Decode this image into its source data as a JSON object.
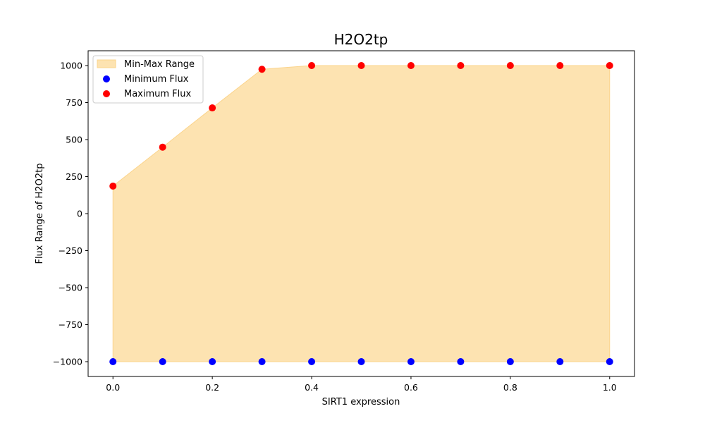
{
  "chart_data": {
    "type": "scatter",
    "title": "H2O2tp",
    "xlabel": "SIRT1 expression",
    "ylabel": "Flux Range of H2O2tp",
    "xlim": [
      -0.05,
      1.05
    ],
    "ylim": [
      -1100,
      1100
    ],
    "xticks": [
      0.0,
      0.2,
      0.4,
      0.6,
      0.8,
      1.0
    ],
    "xtick_labels": [
      "0.0",
      "0.2",
      "0.4",
      "0.6",
      "0.8",
      "1.0"
    ],
    "yticks": [
      -1000,
      -750,
      -500,
      -250,
      0,
      250,
      500,
      750,
      1000
    ],
    "ytick_labels": [
      "−1000",
      "−750",
      "−500",
      "−250",
      "0",
      "250",
      "500",
      "750",
      "1000"
    ],
    "x": [
      0.0,
      0.1,
      0.2,
      0.3,
      0.4,
      0.5,
      0.6,
      0.7,
      0.8,
      0.9,
      1.0
    ],
    "series": [
      {
        "name": "Minimum Flux",
        "kind": "scatter",
        "color": "#0000ff",
        "values": [
          -1000,
          -1000,
          -1000,
          -1000,
          -1000,
          -1000,
          -1000,
          -1000,
          -1000,
          -1000,
          -1000
        ]
      },
      {
        "name": "Maximum Flux",
        "kind": "scatter",
        "color": "#ff0000",
        "values": [
          186,
          449,
          714,
          975,
          1000,
          1000,
          1000,
          1000,
          1000,
          1000,
          1000
        ]
      }
    ],
    "fill": {
      "name": "Min-Max Range",
      "color": "#fde3b1",
      "edge_color": "#fbd48c"
    },
    "legend": {
      "position": "top-left",
      "entries": [
        {
          "label": "Min-Max Range",
          "kind": "patch",
          "color": "#fde3b1"
        },
        {
          "label": "Minimum Flux",
          "kind": "marker",
          "color": "#0000ff"
        },
        {
          "label": "Maximum Flux",
          "kind": "marker",
          "color": "#ff0000"
        }
      ]
    },
    "grid": false
  }
}
